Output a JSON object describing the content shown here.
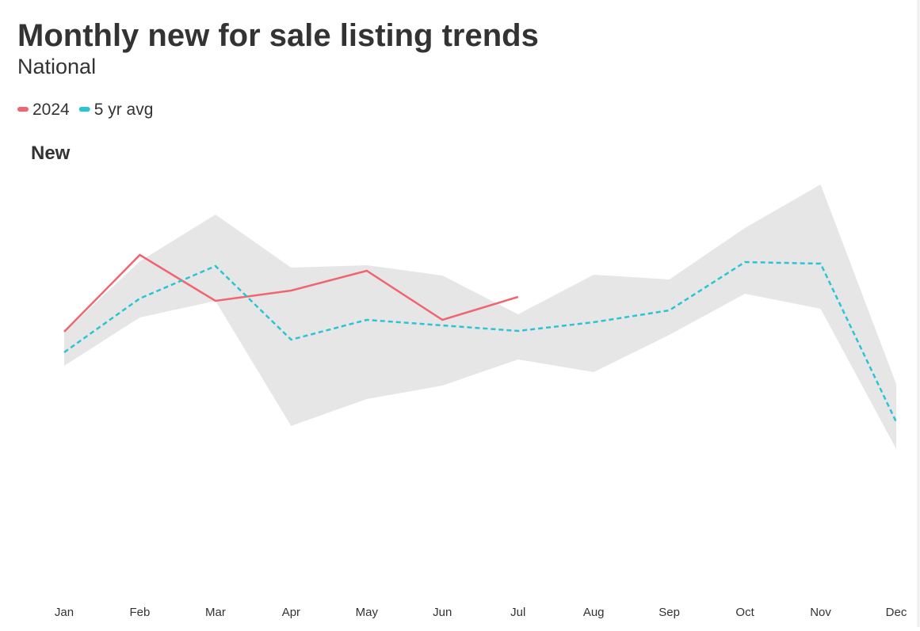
{
  "chart_data": {
    "type": "line",
    "title": "Monthly new for sale listing trends",
    "subtitle": "National",
    "panel_title": "New",
    "categories": [
      "Jan",
      "Feb",
      "Mar",
      "Apr",
      "May",
      "Jun",
      "Jul",
      "Aug",
      "Sep",
      "Oct",
      "Nov",
      "Dec"
    ],
    "series": [
      {
        "name": "2024",
        "color": "#ef6670",
        "dashed": false,
        "values": [
          341,
          438,
          380,
          393,
          418,
          356,
          385,
          null,
          null,
          null,
          null,
          null
        ]
      },
      {
        "name": "5 yr avg",
        "color": "#2bc4d3",
        "dashed": true,
        "values": [
          315,
          383,
          424,
          331,
          356,
          349,
          342,
          353,
          368,
          429,
          427,
          227
        ]
      }
    ],
    "band": {
      "color": "#e6e6e6",
      "upper": [
        340,
        430,
        489,
        422,
        425,
        412,
        363,
        413,
        407,
        472,
        527,
        275
      ],
      "lower": [
        298,
        359,
        380,
        222,
        256,
        273,
        306,
        290,
        337,
        389,
        370,
        193
      ]
    },
    "ylim": [
      0,
      560
    ]
  }
}
